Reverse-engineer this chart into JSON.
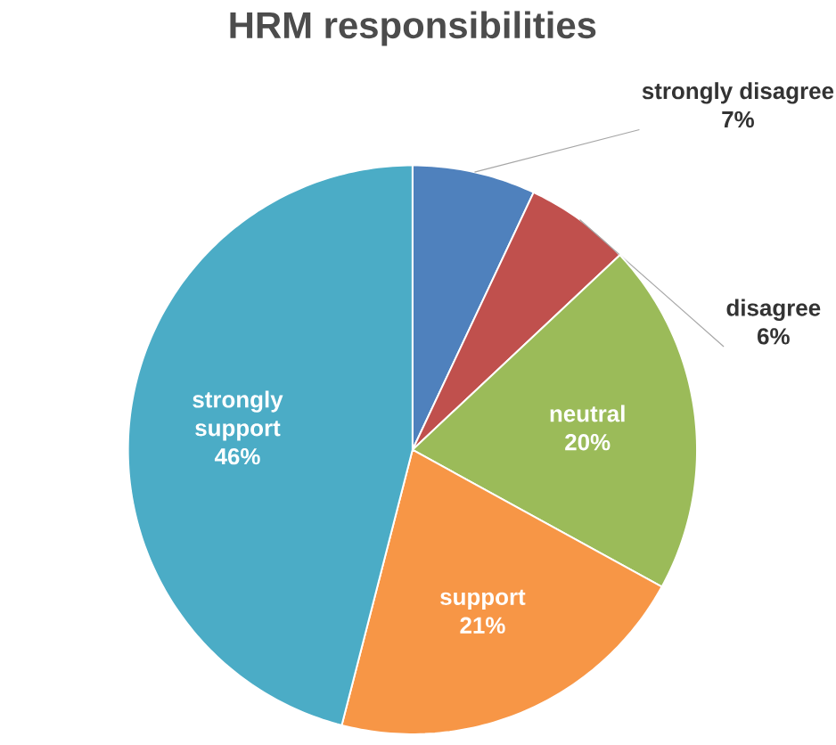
{
  "chart_data": {
    "type": "pie",
    "title": "HRM responsibilities",
    "categories": [
      "strongly disagree",
      "disagree",
      "neutral",
      "support",
      "strongly support"
    ],
    "values": [
      7,
      6,
      20,
      21,
      46
    ],
    "value_labels": [
      "7%",
      "6%",
      "20%",
      "21%",
      "46%"
    ],
    "colors": [
      "#4f81bd",
      "#c0504d",
      "#9bbb59",
      "#f79646",
      "#4bacc6"
    ]
  }
}
